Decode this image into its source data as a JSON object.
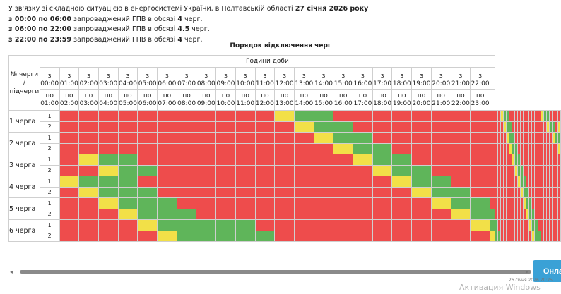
{
  "notice": {
    "line1": "У зв'язку зі складною ситуацією в енергосистемі України, в Полтавській області",
    "line1_date": "27 січня 2026 року",
    "line2_period": "з 00:00 по 06:00",
    "line2_text": "запроваджений ГПВ в обсязі",
    "line2_value": "4",
    "line2_unit": "черг.",
    "line3_period": "з 06:00 по 22:00",
    "line3_text": "запроваджений ГПВ в обсязі",
    "line3_value": "4.5",
    "line3_unit": "черг.",
    "line4_period": "з 22:00 по 23:59",
    "line4_text": "запроваджений ГПВ в обсязі",
    "line4_value": "4",
    "line4_unit": "черг."
  },
  "table": {
    "title": "Порядок відключення черг",
    "hours_header": "Години доби",
    "queue_header": "№ черги / підчерги",
    "from_prefix": "з",
    "to_prefix": "по",
    "from_times": [
      "00:00",
      "01:00",
      "02:00",
      "03:00",
      "04:00",
      "05:00",
      "06:00",
      "07:00",
      "08:00",
      "09:00",
      "10:00",
      "11:00",
      "12:00",
      "13:00",
      "14:00",
      "15:00",
      "16:00",
      "17:00",
      "18:00",
      "19:00",
      "20:00",
      "21:00",
      "22:00"
    ],
    "to_times": [
      "01:00",
      "02:00",
      "03:00",
      "04:00",
      "05:00",
      "06:00",
      "07:00",
      "08:00",
      "09:00",
      "10:00",
      "11:00",
      "12:00",
      "13:00",
      "14:00",
      "15:00",
      "16:00",
      "17:00",
      "18:00",
      "19:00",
      "20:00",
      "21:00",
      "22:00",
      "23:00"
    ],
    "queues": [
      "1 черга",
      "2 черга",
      "3 черга",
      "4 черга",
      "5 черга",
      "6 черга"
    ],
    "subqueues": [
      "1",
      "2"
    ],
    "legend_colors": {
      "off": "#ee4c4c",
      "on": "#5fb55a",
      "maybe": "#f2e048"
    },
    "schedule": [
      "RRRRRRRRRRRYGGRRRRRRRRRRRYGGRRRRRRRRRRRYGGRRRR",
      "RRRRRRRRRRRRYGGRRRRRRRRRRRYGGRRRRRRRRRRRRYGGRY",
      "RRRRRRRRRRRRRYGGRRRRRRRRRRRYGGRRRRRRRRRRRRRYGG",
      "RRRRRRRRRRRRRRYGGRRRRRRRRRRRYGGRRRRRRRRRRRRRRY",
      "RYGGRRRRRRRRRRRYGGRRRRRRRRRRRYGGRRRRRRRRRRRRRR",
      "RRYGGRRRRRRRRRRRYGGRRRRRRRRRRRYGGRRRRRRRRRRRRR",
      "YGGGRRRRRRRRRRRRRYGGRRRRRRRRRRRYGGRRRRRRRRRRRR",
      "RYGGGRRRRRRRRRRRRRYGGRRRRRRRRRRRYGGRRRRRRRRRRR",
      "RRYGGGRRRRRRRRRRRRRYGGRRRRRRRRRRRYGGRRRRRRRRRR",
      "RRRYGGGRRRRRRRRRRRRRYGGRRRRRRRRRRRYGGRRRRRRRRR",
      "RRRRYGGGGGRRRRRRRRRRRYGGRRRRRRRRRRRYGGRRRRRRRR",
      "RRRRRYGGGGGRRRRRRRRRRRYGGRRRRRRRRRRRYGGRRRRRRR"
    ]
  },
  "controls": {
    "button_label": "Онла",
    "scroll_left": "◂",
    "scroll_right": "▸"
  },
  "overlay": {
    "watermark": "Активация Windows",
    "timestamp": "26 січня 2026 20:25"
  }
}
